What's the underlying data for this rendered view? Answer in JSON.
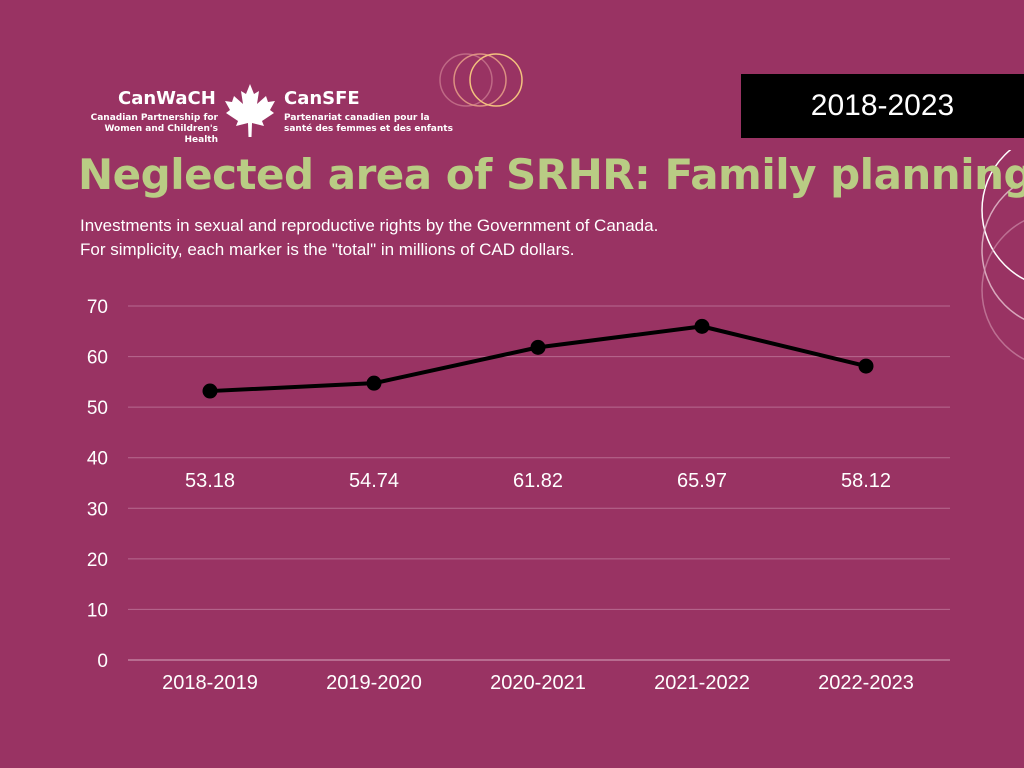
{
  "logo": {
    "en_name": "CanWaCH",
    "en_subtitle_line1": "Canadian Partnership for",
    "en_subtitle_line2": "Women and Children's Health",
    "fr_name": "CanSFE",
    "fr_subtitle_line1": "Partenariat canadien pour la",
    "fr_subtitle_line2": "santé des femmes et des enfants",
    "icon": "maple-leaf-icon"
  },
  "year_range": "2018-2023",
  "title": "Neglected area of SRHR: Family planning",
  "subtitle_line1": "Investments in sexual and reproductive rights by the Government of Canada.",
  "subtitle_line2": "For simplicity, each marker is the \"total\" in millions of CAD dollars.",
  "colors": {
    "background": "#993363",
    "title": "#b9cc84",
    "line": "#000000",
    "text": "#ffffff",
    "badge": "#000000"
  },
  "chart_data": {
    "type": "line",
    "categories": [
      "2018-2019",
      "2019-2020",
      "2020-2021",
      "2021-2022",
      "2022-2023"
    ],
    "series": [
      {
        "values": [
          53.18,
          54.74,
          61.82,
          65.97,
          58.12
        ]
      }
    ],
    "data_labels": [
      "53.18",
      "54.74",
      "61.82",
      "65.97",
      "58.12"
    ],
    "y_ticks": [
      0,
      10,
      20,
      30,
      40,
      50,
      60,
      70
    ],
    "ylim": [
      0,
      70
    ],
    "grid": true,
    "title": "",
    "xlabel": "",
    "ylabel": ""
  }
}
